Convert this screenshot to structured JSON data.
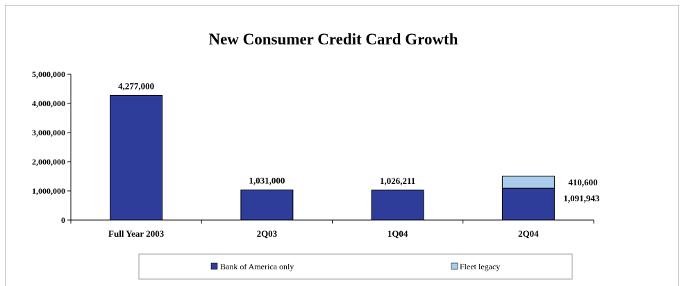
{
  "chart_data": {
    "type": "bar",
    "stacked": true,
    "title": "New Consumer Credit Card Growth",
    "categories": [
      "Full Year 2003",
      "2Q03",
      "1Q04",
      "2Q04"
    ],
    "series": [
      {
        "name": "Bank of America only",
        "values": [
          4277000,
          1031000,
          1026211,
          1091943
        ],
        "color": "#2e3d9a"
      },
      {
        "name": "Fleet legacy",
        "values": [
          0,
          0,
          0,
          410600
        ],
        "color": "#a9cdea"
      }
    ],
    "data_labels": [
      "4,277,000",
      "1,031,000",
      "1,026,211",
      "1,091,943",
      "410,600"
    ],
    "y_ticks": [
      "0",
      "1,000,000",
      "2,000,000",
      "3,000,000",
      "4,000,000",
      "5,000,000"
    ],
    "ylim": [
      0,
      5000000
    ],
    "legend": {
      "position": "bottom",
      "entries": [
        "Bank of America only",
        "Fleet legacy"
      ]
    },
    "grid": false
  }
}
